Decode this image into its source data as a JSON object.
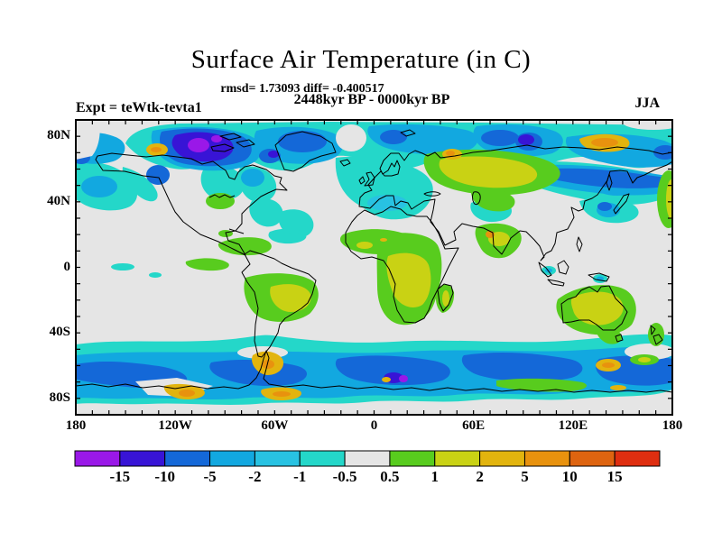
{
  "title": "Surface Air Temperature (in C)",
  "subtitle": {
    "rmsd_line": "rmsd= 1.73093 diff= -0.400517",
    "period_line": "2448kyr BP - 0000kyr BP"
  },
  "annotations": {
    "experiment": "Expt = teWtk-tevta1",
    "season": "JJA"
  },
  "axes": {
    "lat_labels": [
      {
        "value": 80,
        "label": "80N"
      },
      {
        "value": 40,
        "label": "40N"
      },
      {
        "value": 0,
        "label": "0"
      },
      {
        "value": -40,
        "label": "40S"
      },
      {
        "value": -80,
        "label": "80S"
      }
    ],
    "lon_labels": [
      {
        "value": -180,
        "label": "180"
      },
      {
        "value": -120,
        "label": "120W"
      },
      {
        "value": -60,
        "label": "60W"
      },
      {
        "value": 0,
        "label": "0"
      },
      {
        "value": 60,
        "label": "60E"
      },
      {
        "value": 120,
        "label": "120E"
      },
      {
        "value": 180,
        "label": "180"
      }
    ],
    "tick_step_deg": 10
  },
  "colorbar": {
    "boundary_labels": [
      "-15",
      "-10",
      "-5",
      "-2",
      "-1",
      "-0.5",
      "0.5",
      "1",
      "2",
      "5",
      "10",
      "15"
    ],
    "colors": [
      "#9A18E8",
      "#3814D6",
      "#1468D8",
      "#12A8E0",
      "#28C2E2",
      "#24D7C9",
      "#E5E5E5",
      "#58CC1E",
      "#C9D214",
      "#E2B40E",
      "#E8920E",
      "#DE6410",
      "#DF2E10"
    ]
  },
  "chart_data": {
    "type": "heatmap",
    "subtype": "filled_contour_world_map",
    "title": "Surface Air Temperature (in C)",
    "units": "C",
    "stats": {
      "rmsd": 1.73093,
      "diff": -0.400517
    },
    "comparison": "2448kyr BP - 0000kyr BP",
    "experiment": "teWtk-tevta1",
    "season": "JJA",
    "projection": "equirectangular",
    "lon_range": [
      -180,
      180
    ],
    "lat_range": [
      -90,
      90
    ],
    "contour_levels": [
      -15,
      -10,
      -5,
      -2,
      -1,
      -0.5,
      0.5,
      1,
      2,
      5,
      10,
      15
    ],
    "palette": [
      "#9A18E8",
      "#3814D6",
      "#1468D8",
      "#12A8E0",
      "#28C2E2",
      "#24D7C9",
      "#E5E5E5",
      "#58CC1E",
      "#C9D214",
      "#E2B40E",
      "#E8920E",
      "#DE6410",
      "#DF2E10"
    ],
    "features": [
      "Strong cooling of -15 to -5 C centered on Hudson Bay / northern Canada with violet-purple core",
      "Cooling band of -2 to -0.5 C across the Arctic, North Atlantic, North Pacific and northern Eurasia coasts",
      "Cooling band of -5 to -0.5 C over the Southern Ocean around 50S-70S with local -10 C patches near 10E",
      "Warming of 0.5 to 2 C over Siberia/Russia, southern Africa, Brazil, northern South America, India and Australia",
      "Local strong warming of 2 to 10 C spots near Alaska/Yukon, Chukotka, Novaya Zemlya, India and along the Antarctic coast",
      "Near-zero change (-0.5 to 0.5 C, gray) over most subtropical oceans and North Africa"
    ]
  }
}
